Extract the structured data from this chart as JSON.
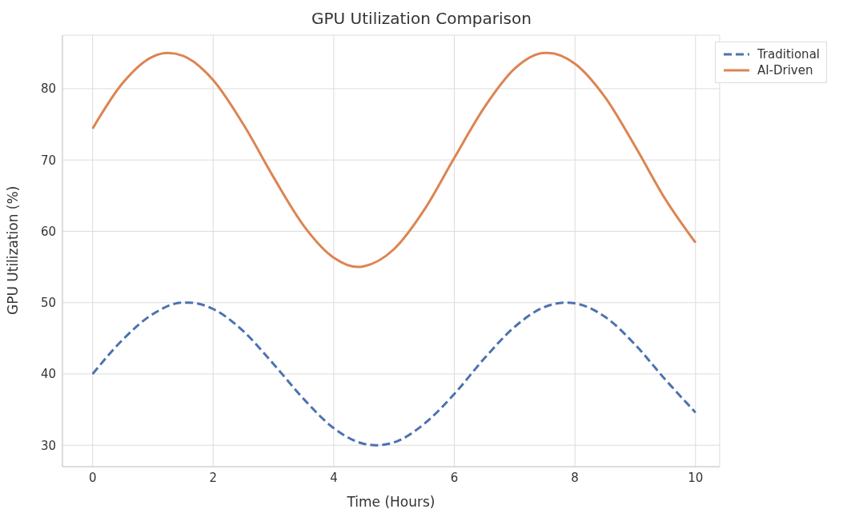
{
  "chart_data": {
    "type": "line",
    "title": "GPU Utilization Comparison",
    "xlabel": "Time (Hours)",
    "ylabel": "GPU Utilization (%)",
    "series": [
      {
        "name": "Traditional",
        "color": "#4c72b0",
        "line_style": "dashed",
        "x": [
          0,
          0.5,
          1,
          1.5,
          1.6,
          2,
          2.5,
          3,
          3.5,
          4,
          4.5,
          4.7,
          5,
          5.5,
          6,
          6.5,
          7,
          7.5,
          7.85,
          8,
          8.5,
          9,
          9.5,
          10
        ],
        "values": [
          40,
          44.8,
          48.4,
          50,
          50,
          49.1,
          46,
          41.4,
          36.5,
          32.4,
          30.2,
          30,
          30.4,
          33,
          37.2,
          42.2,
          46.6,
          49.4,
          50,
          49.9,
          48,
          44.1,
          39.2,
          34.6
        ]
      },
      {
        "name": "AI-Driven",
        "color": "#dd8452",
        "line_style": "solid",
        "x": [
          0,
          0.5,
          1,
          1.25,
          1.5,
          2,
          2.5,
          3,
          3.5,
          4,
          4.4,
          4.5,
          5,
          5.5,
          6,
          6.5,
          7,
          7.5,
          7.55,
          8,
          8.5,
          9,
          9.5,
          10
        ],
        "values": [
          74.4,
          80.8,
          84.5,
          85,
          84.6,
          81.2,
          75,
          67.6,
          60.8,
          56.3,
          55,
          55.1,
          57.5,
          63,
          70.3,
          77.4,
          82.8,
          85,
          85,
          83.5,
          78.8,
          71.9,
          64.5,
          58.4
        ]
      }
    ],
    "xlim": [
      -0.5,
      10.4
    ],
    "xticks": [
      0,
      2,
      4,
      6,
      8,
      10
    ],
    "ylim": [
      27,
      87.5
    ],
    "yticks": [
      30,
      40,
      50,
      60,
      70,
      80
    ],
    "grid": true,
    "legend": "top right",
    "marker": "none"
  }
}
